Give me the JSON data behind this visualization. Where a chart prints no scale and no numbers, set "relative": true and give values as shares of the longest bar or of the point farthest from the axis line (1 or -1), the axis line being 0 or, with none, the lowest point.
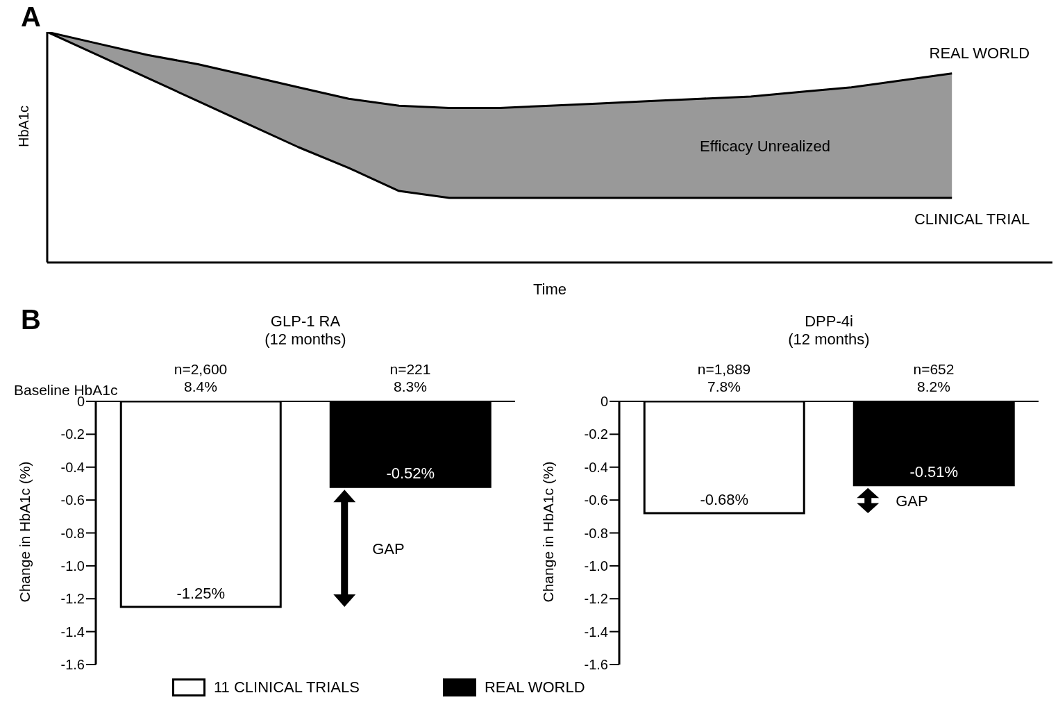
{
  "chart_data": [
    {
      "type": "area",
      "title": "A",
      "xlabel": "Time",
      "ylabel": "HbA1c",
      "relative": true,
      "categories": [
        null,
        null,
        null,
        null,
        null,
        null,
        null,
        null,
        null,
        null,
        null,
        null,
        null,
        null,
        null,
        null,
        null,
        null,
        null,
        null,
        null
      ],
      "annotations": [
        "Efficacy Unrealized"
      ],
      "series": [
        {
          "name": "REAL WORLD",
          "type": "line",
          "color": "#000000",
          "values": [
            1,
            0.95,
            0.9,
            0.86,
            0.81,
            0.76,
            0.71,
            0.68,
            0.67,
            0.67,
            0.68,
            0.69,
            0.7,
            0.71,
            0.72,
            0.74,
            0.76,
            0.79,
            0.82,
            null,
            null
          ]
        },
        {
          "name": "CLINICAL TRIAL",
          "type": "line",
          "color": "#000000",
          "values": [
            1,
            0.9,
            0.8,
            0.7,
            0.6,
            0.5,
            0.41,
            0.31,
            0.28,
            0.28,
            0.28,
            0.28,
            0.28,
            0.28,
            0.28,
            0.28,
            0.28,
            0.28,
            0.28,
            null,
            null
          ]
        }
      ]
    },
    {
      "type": "bar",
      "title": "GLP-1 RA",
      "subtitle": "(12 months)",
      "ylabel": "Change in HbA1c (%)",
      "categories": [
        "n=2,600\n8.4%",
        "n=221\n8.3%"
      ],
      "stacked": true,
      "ylim": [
        -1.6,
        0
      ],
      "yticks": [
        0,
        -0.2,
        -0.4,
        -0.6,
        -0.8,
        {
          "value": -1,
          "label": "-1.0"
        },
        -1.2,
        -1.4,
        -1.6
      ],
      "legend": "bottom",
      "annotations": [
        "B",
        "Baseline HbA1c",
        "GAP"
      ],
      "series": [
        {
          "name": "11 CLINICAL TRIALS",
          "color": "#ffffff",
          "values": [
            -1.25,
            null
          ],
          "value_labels": [
            "-1.25%",
            null
          ]
        },
        {
          "name": "REAL WORLD",
          "color": "#000000",
          "values": [
            null,
            -0.52
          ],
          "value_labels": [
            null,
            "-0.52%"
          ]
        }
      ]
    },
    {
      "type": "bar",
      "title": "DPP-4i",
      "subtitle": "(12 months)",
      "ylabel": "Change in HbA1c (%)",
      "categories": [
        "n=1,889\n7.8%",
        "n=652\n8.2%"
      ],
      "stacked": true,
      "ylim": [
        -1.6,
        0
      ],
      "yticks": [
        0,
        -0.2,
        -0.4,
        -0.6,
        -0.8,
        {
          "value": -1,
          "label": "-1.0"
        },
        -1.2,
        -1.4,
        -1.6
      ],
      "annotations": [
        "GAP"
      ],
      "series": [
        {
          "color": "#ffffff",
          "values": [
            -0.68,
            null
          ],
          "value_labels": [
            "-0.68%",
            null
          ]
        },
        {
          "color": "#000000",
          "values": [
            null,
            -0.51
          ],
          "value_labels": [
            null,
            "-0.51%"
          ]
        }
      ]
    }
  ]
}
